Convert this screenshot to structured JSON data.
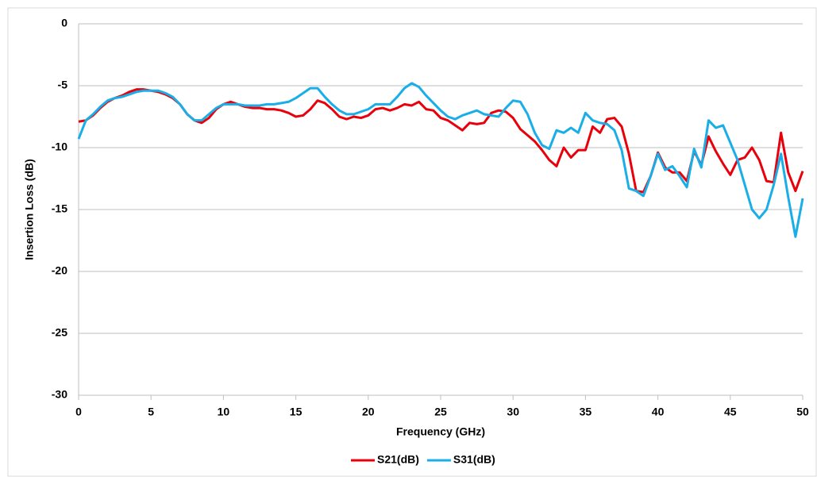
{
  "chart_data": {
    "type": "line",
    "x_label": "Frequency (GHz)",
    "y_label": "Insertion Loss (dB)",
    "x": [
      0,
      0.5,
      1,
      1.5,
      2,
      2.5,
      3,
      3.5,
      4,
      4.5,
      5,
      5.5,
      6,
      6.5,
      7,
      7.5,
      8,
      8.5,
      9,
      9.5,
      10,
      10.5,
      11,
      11.5,
      12,
      12.5,
      13,
      13.5,
      14,
      14.5,
      15,
      15.5,
      16,
      16.5,
      17,
      17.5,
      18,
      18.5,
      19,
      19.5,
      20,
      20.5,
      21,
      21.5,
      22,
      22.5,
      23,
      23.5,
      24,
      24.5,
      25,
      25.5,
      26,
      26.5,
      27,
      27.5,
      28,
      28.5,
      29,
      29.5,
      30,
      30.5,
      31,
      31.5,
      32,
      32.5,
      33,
      33.5,
      34,
      34.5,
      35,
      35.5,
      36,
      36.5,
      37,
      37.5,
      38,
      38.5,
      39,
      39.5,
      40,
      40.5,
      41,
      41.5,
      42,
      42.5,
      43,
      43.5,
      44,
      44.5,
      45,
      45.5,
      46,
      46.5,
      47,
      47.5,
      48,
      48.5,
      49,
      49.5,
      50
    ],
    "series": [
      {
        "name": "S21(dB)",
        "color": "#e8000b",
        "values": [
          -7.9,
          -7.8,
          -7.4,
          -6.8,
          -6.3,
          -6.0,
          -5.8,
          -5.5,
          -5.3,
          -5.3,
          -5.4,
          -5.5,
          -5.7,
          -6.0,
          -6.5,
          -7.3,
          -7.8,
          -8.0,
          -7.6,
          -6.9,
          -6.5,
          -6.3,
          -6.5,
          -6.7,
          -6.8,
          -6.8,
          -6.9,
          -6.9,
          -7.0,
          -7.2,
          -7.5,
          -7.4,
          -6.9,
          -6.2,
          -6.4,
          -6.9,
          -7.5,
          -7.7,
          -7.5,
          -7.6,
          -7.4,
          -6.9,
          -6.8,
          -7.0,
          -6.8,
          -6.5,
          -6.6,
          -6.3,
          -6.9,
          -7.0,
          -7.6,
          -7.8,
          -8.2,
          -8.6,
          -8.0,
          -8.1,
          -8.0,
          -7.2,
          -7.0,
          -7.1,
          -7.6,
          -8.5,
          -9.0,
          -9.5,
          -10.2,
          -11.0,
          -11.5,
          -10.0,
          -10.8,
          -10.2,
          -10.2,
          -8.3,
          -8.8,
          -7.7,
          -7.6,
          -8.3,
          -10.5,
          -13.5,
          -13.6,
          -12.3,
          -10.4,
          -11.6,
          -12.0,
          -12.0,
          -12.7,
          -10.3,
          -11.4,
          -9.1,
          -10.3,
          -11.3,
          -12.2,
          -11.0,
          -10.8,
          -10.0,
          -11.0,
          -12.7,
          -12.8,
          -8.8,
          -12.0,
          -13.5,
          -11.9
        ]
      },
      {
        "name": "S31(dB)",
        "color": "#1aaee8",
        "values": [
          -9.3,
          -7.8,
          -7.3,
          -6.7,
          -6.2,
          -6.0,
          -5.9,
          -5.7,
          -5.5,
          -5.4,
          -5.4,
          -5.4,
          -5.6,
          -5.9,
          -6.5,
          -7.3,
          -7.8,
          -7.8,
          -7.3,
          -6.8,
          -6.5,
          -6.5,
          -6.5,
          -6.6,
          -6.6,
          -6.6,
          -6.5,
          -6.5,
          -6.4,
          -6.3,
          -6.0,
          -5.6,
          -5.2,
          -5.2,
          -5.9,
          -6.5,
          -7.0,
          -7.3,
          -7.3,
          -7.1,
          -6.9,
          -6.5,
          -6.5,
          -6.5,
          -5.9,
          -5.2,
          -4.8,
          -5.1,
          -5.8,
          -6.4,
          -7.0,
          -7.5,
          -7.7,
          -7.4,
          -7.2,
          -7.0,
          -7.3,
          -7.4,
          -7.5,
          -6.8,
          -6.2,
          -6.3,
          -7.3,
          -8.8,
          -9.8,
          -10.1,
          -8.6,
          -8.8,
          -8.4,
          -8.8,
          -7.2,
          -7.8,
          -8.0,
          -8.1,
          -8.6,
          -10.2,
          -13.3,
          -13.5,
          -13.9,
          -12.3,
          -10.5,
          -11.8,
          -11.5,
          -12.3,
          -13.2,
          -10.1,
          -11.6,
          -7.8,
          -8.4,
          -8.2,
          -9.6,
          -11.0,
          -13.0,
          -15.0,
          -15.7,
          -15.0,
          -13.0,
          -10.5,
          -14.0,
          -17.2,
          -14.1
        ]
      }
    ],
    "xlim": [
      0,
      50
    ],
    "xticks": [
      0,
      5,
      10,
      15,
      20,
      25,
      30,
      35,
      40,
      45,
      50
    ],
    "ylim": [
      -30,
      0
    ],
    "yticks": [
      -30,
      -25,
      -20,
      -15,
      -10,
      -5,
      0
    ],
    "grid": true,
    "legend": "bottom"
  }
}
